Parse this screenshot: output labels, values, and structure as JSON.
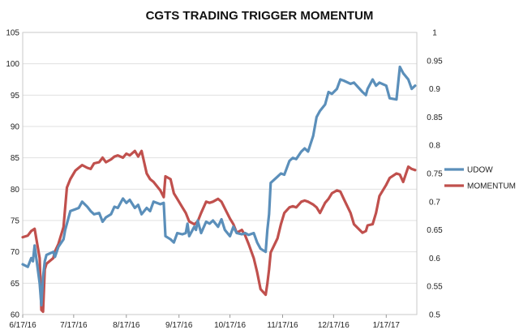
{
  "chart_data": {
    "type": "line",
    "title": "CGTS TRADING TRIGGER MOMENTUM",
    "colors": {
      "udow": "#5b8fba",
      "momentum": "#c0504d"
    },
    "x_tick_labels": [
      "6/17/16",
      "7/17/16",
      "8/17/16",
      "9/17/16",
      "10/17/16",
      "11/17/16",
      "12/17/16",
      "1/17/17"
    ],
    "y_left": {
      "min": 60,
      "max": 105,
      "ticks": [
        60,
        65,
        70,
        75,
        80,
        85,
        90,
        95,
        100,
        105
      ]
    },
    "y_right": {
      "min": 0.5,
      "max": 1,
      "ticks": [
        "0.5",
        "0.55",
        "0.6",
        "0.65",
        "0.7",
        "0.75",
        "0.8",
        "0.85",
        "0.9",
        "0.95",
        "1"
      ]
    },
    "legend": {
      "position": "right"
    },
    "series": [
      {
        "name": "UDOW",
        "axis": "left",
        "points": [
          [
            "2016-06-17",
            68.0
          ],
          [
            "2016-06-20",
            67.6
          ],
          [
            "2016-06-22",
            69.0
          ],
          [
            "2016-06-23",
            68.5
          ],
          [
            "2016-06-24",
            71.0
          ],
          [
            "2016-06-27",
            65.0
          ],
          [
            "2016-06-28",
            61.5
          ],
          [
            "2016-06-29",
            66.0
          ],
          [
            "2016-06-30",
            68.5
          ],
          [
            "2016-07-01",
            69.5
          ],
          [
            "2016-07-05",
            70.0
          ],
          [
            "2016-07-06",
            69.2
          ],
          [
            "2016-07-08",
            70.8
          ],
          [
            "2016-07-11",
            72.0
          ],
          [
            "2016-07-12",
            73.5
          ],
          [
            "2016-07-13",
            74.5
          ],
          [
            "2016-07-15",
            76.5
          ],
          [
            "2016-07-18",
            76.8
          ],
          [
            "2016-07-20",
            77.0
          ],
          [
            "2016-07-22",
            78.0
          ],
          [
            "2016-07-25",
            77.2
          ],
          [
            "2016-07-27",
            76.5
          ],
          [
            "2016-07-29",
            76.0
          ],
          [
            "2016-08-01",
            76.2
          ],
          [
            "2016-08-03",
            74.8
          ],
          [
            "2016-08-05",
            75.5
          ],
          [
            "2016-08-08",
            76.0
          ],
          [
            "2016-08-10",
            77.2
          ],
          [
            "2016-08-12",
            77.0
          ],
          [
            "2016-08-15",
            78.5
          ],
          [
            "2016-08-17",
            77.8
          ],
          [
            "2016-08-19",
            78.3
          ],
          [
            "2016-08-22",
            77.0
          ],
          [
            "2016-08-24",
            77.5
          ],
          [
            "2016-08-26",
            76.0
          ],
          [
            "2016-08-29",
            77.0
          ],
          [
            "2016-08-31",
            76.5
          ],
          [
            "2016-09-02",
            78.0
          ],
          [
            "2016-09-06",
            77.6
          ],
          [
            "2016-09-08",
            77.8
          ],
          [
            "2016-09-09",
            72.5
          ],
          [
            "2016-09-12",
            72.0
          ],
          [
            "2016-09-14",
            71.5
          ],
          [
            "2016-09-16",
            73.0
          ],
          [
            "2016-09-19",
            72.8
          ],
          [
            "2016-09-21",
            73.0
          ],
          [
            "2016-09-22",
            74.5
          ],
          [
            "2016-09-23",
            72.5
          ],
          [
            "2016-09-26",
            74.0
          ],
          [
            "2016-09-27",
            73.5
          ],
          [
            "2016-09-28",
            75.0
          ],
          [
            "2016-09-30",
            73.0
          ],
          [
            "2016-10-03",
            74.8
          ],
          [
            "2016-10-05",
            74.5
          ],
          [
            "2016-10-07",
            75.0
          ],
          [
            "2016-10-10",
            74.0
          ],
          [
            "2016-10-12",
            75.2
          ],
          [
            "2016-10-14",
            73.5
          ],
          [
            "2016-10-17",
            72.5
          ],
          [
            "2016-10-19",
            74.0
          ],
          [
            "2016-10-21",
            73.0
          ],
          [
            "2016-10-24",
            72.8
          ],
          [
            "2016-10-26",
            73.0
          ],
          [
            "2016-10-28",
            72.7
          ],
          [
            "2016-10-31",
            73.0
          ],
          [
            "2016-11-02",
            71.5
          ],
          [
            "2016-11-04",
            70.5
          ],
          [
            "2016-11-07",
            70.0
          ],
          [
            "2016-11-08",
            73.5
          ],
          [
            "2016-11-09",
            76.0
          ],
          [
            "2016-11-10",
            81.0
          ],
          [
            "2016-11-14",
            82.0
          ],
          [
            "2016-11-16",
            82.5
          ],
          [
            "2016-11-18",
            82.3
          ],
          [
            "2016-11-21",
            84.5
          ],
          [
            "2016-11-23",
            85.0
          ],
          [
            "2016-11-25",
            84.8
          ],
          [
            "2016-11-28",
            86.0
          ],
          [
            "2016-11-30",
            86.5
          ],
          [
            "2016-12-02",
            86.0
          ],
          [
            "2016-12-05",
            88.5
          ],
          [
            "2016-12-07",
            91.5
          ],
          [
            "2016-12-09",
            92.5
          ],
          [
            "2016-12-12",
            93.5
          ],
          [
            "2016-12-14",
            95.5
          ],
          [
            "2016-12-16",
            95.2
          ],
          [
            "2016-12-19",
            96.0
          ],
          [
            "2016-12-21",
            97.5
          ],
          [
            "2016-12-23",
            97.3
          ],
          [
            "2016-12-27",
            96.8
          ],
          [
            "2016-12-29",
            97.0
          ],
          [
            "2017-01-03",
            95.5
          ],
          [
            "2017-01-05",
            95.0
          ],
          [
            "2017-01-06",
            96.0
          ],
          [
            "2017-01-09",
            97.5
          ],
          [
            "2017-01-11",
            96.5
          ],
          [
            "2017-01-13",
            97.0
          ],
          [
            "2017-01-17",
            96.5
          ],
          [
            "2017-01-19",
            94.5
          ],
          [
            "2017-01-23",
            94.3
          ],
          [
            "2017-01-25",
            99.5
          ],
          [
            "2017-01-27",
            98.5
          ],
          [
            "2017-01-30",
            97.5
          ],
          [
            "2017-02-01",
            96.0
          ],
          [
            "2017-02-03",
            96.5
          ]
        ]
      },
      {
        "name": "MOMENTUM",
        "axis": "right",
        "points": [
          [
            "2016-06-17",
            0.637
          ],
          [
            "2016-06-20",
            0.64
          ],
          [
            "2016-06-22",
            0.648
          ],
          [
            "2016-06-24",
            0.652
          ],
          [
            "2016-06-27",
            0.6
          ],
          [
            "2016-06-28",
            0.508
          ],
          [
            "2016-06-29",
            0.505
          ],
          [
            "2016-06-30",
            0.58
          ],
          [
            "2016-07-01",
            0.59
          ],
          [
            "2016-07-05",
            0.6
          ],
          [
            "2016-07-06",
            0.612
          ],
          [
            "2016-07-08",
            0.625
          ],
          [
            "2016-07-11",
            0.655
          ],
          [
            "2016-07-12",
            0.69
          ],
          [
            "2016-07-13",
            0.725
          ],
          [
            "2016-07-15",
            0.74
          ],
          [
            "2016-07-18",
            0.755
          ],
          [
            "2016-07-20",
            0.76
          ],
          [
            "2016-07-22",
            0.765
          ],
          [
            "2016-07-25",
            0.76
          ],
          [
            "2016-07-27",
            0.758
          ],
          [
            "2016-07-29",
            0.768
          ],
          [
            "2016-08-01",
            0.77
          ],
          [
            "2016-08-03",
            0.778
          ],
          [
            "2016-08-05",
            0.77
          ],
          [
            "2016-08-08",
            0.775
          ],
          [
            "2016-08-10",
            0.78
          ],
          [
            "2016-08-12",
            0.782
          ],
          [
            "2016-08-15",
            0.778
          ],
          [
            "2016-08-17",
            0.785
          ],
          [
            "2016-08-19",
            0.782
          ],
          [
            "2016-08-22",
            0.79
          ],
          [
            "2016-08-24",
            0.78
          ],
          [
            "2016-08-26",
            0.79
          ],
          [
            "2016-08-29",
            0.75
          ],
          [
            "2016-08-31",
            0.74
          ],
          [
            "2016-09-02",
            0.735
          ],
          [
            "2016-09-06",
            0.72
          ],
          [
            "2016-09-08",
            0.708
          ],
          [
            "2016-09-09",
            0.745
          ],
          [
            "2016-09-12",
            0.74
          ],
          [
            "2016-09-14",
            0.715
          ],
          [
            "2016-09-16",
            0.705
          ],
          [
            "2016-09-19",
            0.69
          ],
          [
            "2016-09-21",
            0.68
          ],
          [
            "2016-09-23",
            0.665
          ],
          [
            "2016-09-26",
            0.66
          ],
          [
            "2016-09-28",
            0.665
          ],
          [
            "2016-09-30",
            0.68
          ],
          [
            "2016-10-03",
            0.7
          ],
          [
            "2016-10-05",
            0.698
          ],
          [
            "2016-10-07",
            0.7
          ],
          [
            "2016-10-10",
            0.705
          ],
          [
            "2016-10-12",
            0.7
          ],
          [
            "2016-10-14",
            0.688
          ],
          [
            "2016-10-17",
            0.67
          ],
          [
            "2016-10-19",
            0.66
          ],
          [
            "2016-10-21",
            0.645
          ],
          [
            "2016-10-24",
            0.65
          ],
          [
            "2016-10-26",
            0.64
          ],
          [
            "2016-10-28",
            0.625
          ],
          [
            "2016-10-31",
            0.6
          ],
          [
            "2016-11-02",
            0.575
          ],
          [
            "2016-11-04",
            0.545
          ],
          [
            "2016-11-07",
            0.535
          ],
          [
            "2016-11-08",
            0.555
          ],
          [
            "2016-11-09",
            0.58
          ],
          [
            "2016-11-10",
            0.61
          ],
          [
            "2016-11-14",
            0.635
          ],
          [
            "2016-11-16",
            0.66
          ],
          [
            "2016-11-18",
            0.68
          ],
          [
            "2016-11-21",
            0.69
          ],
          [
            "2016-11-23",
            0.692
          ],
          [
            "2016-11-25",
            0.69
          ],
          [
            "2016-11-28",
            0.7
          ],
          [
            "2016-11-30",
            0.702
          ],
          [
            "2016-12-02",
            0.7
          ],
          [
            "2016-12-05",
            0.695
          ],
          [
            "2016-12-07",
            0.69
          ],
          [
            "2016-12-09",
            0.68
          ],
          [
            "2016-12-12",
            0.698
          ],
          [
            "2016-12-14",
            0.705
          ],
          [
            "2016-12-16",
            0.715
          ],
          [
            "2016-12-19",
            0.72
          ],
          [
            "2016-12-21",
            0.718
          ],
          [
            "2016-12-23",
            0.705
          ],
          [
            "2016-12-27",
            0.68
          ],
          [
            "2016-12-29",
            0.66
          ],
          [
            "2017-01-03",
            0.645
          ],
          [
            "2017-01-05",
            0.648
          ],
          [
            "2017-01-06",
            0.658
          ],
          [
            "2017-01-09",
            0.66
          ],
          [
            "2017-01-11",
            0.68
          ],
          [
            "2017-01-13",
            0.71
          ],
          [
            "2017-01-17",
            0.73
          ],
          [
            "2017-01-19",
            0.742
          ],
          [
            "2017-01-23",
            0.75
          ],
          [
            "2017-01-25",
            0.748
          ],
          [
            "2017-01-27",
            0.735
          ],
          [
            "2017-01-30",
            0.762
          ],
          [
            "2017-02-01",
            0.758
          ],
          [
            "2017-02-03",
            0.756
          ]
        ]
      }
    ]
  }
}
